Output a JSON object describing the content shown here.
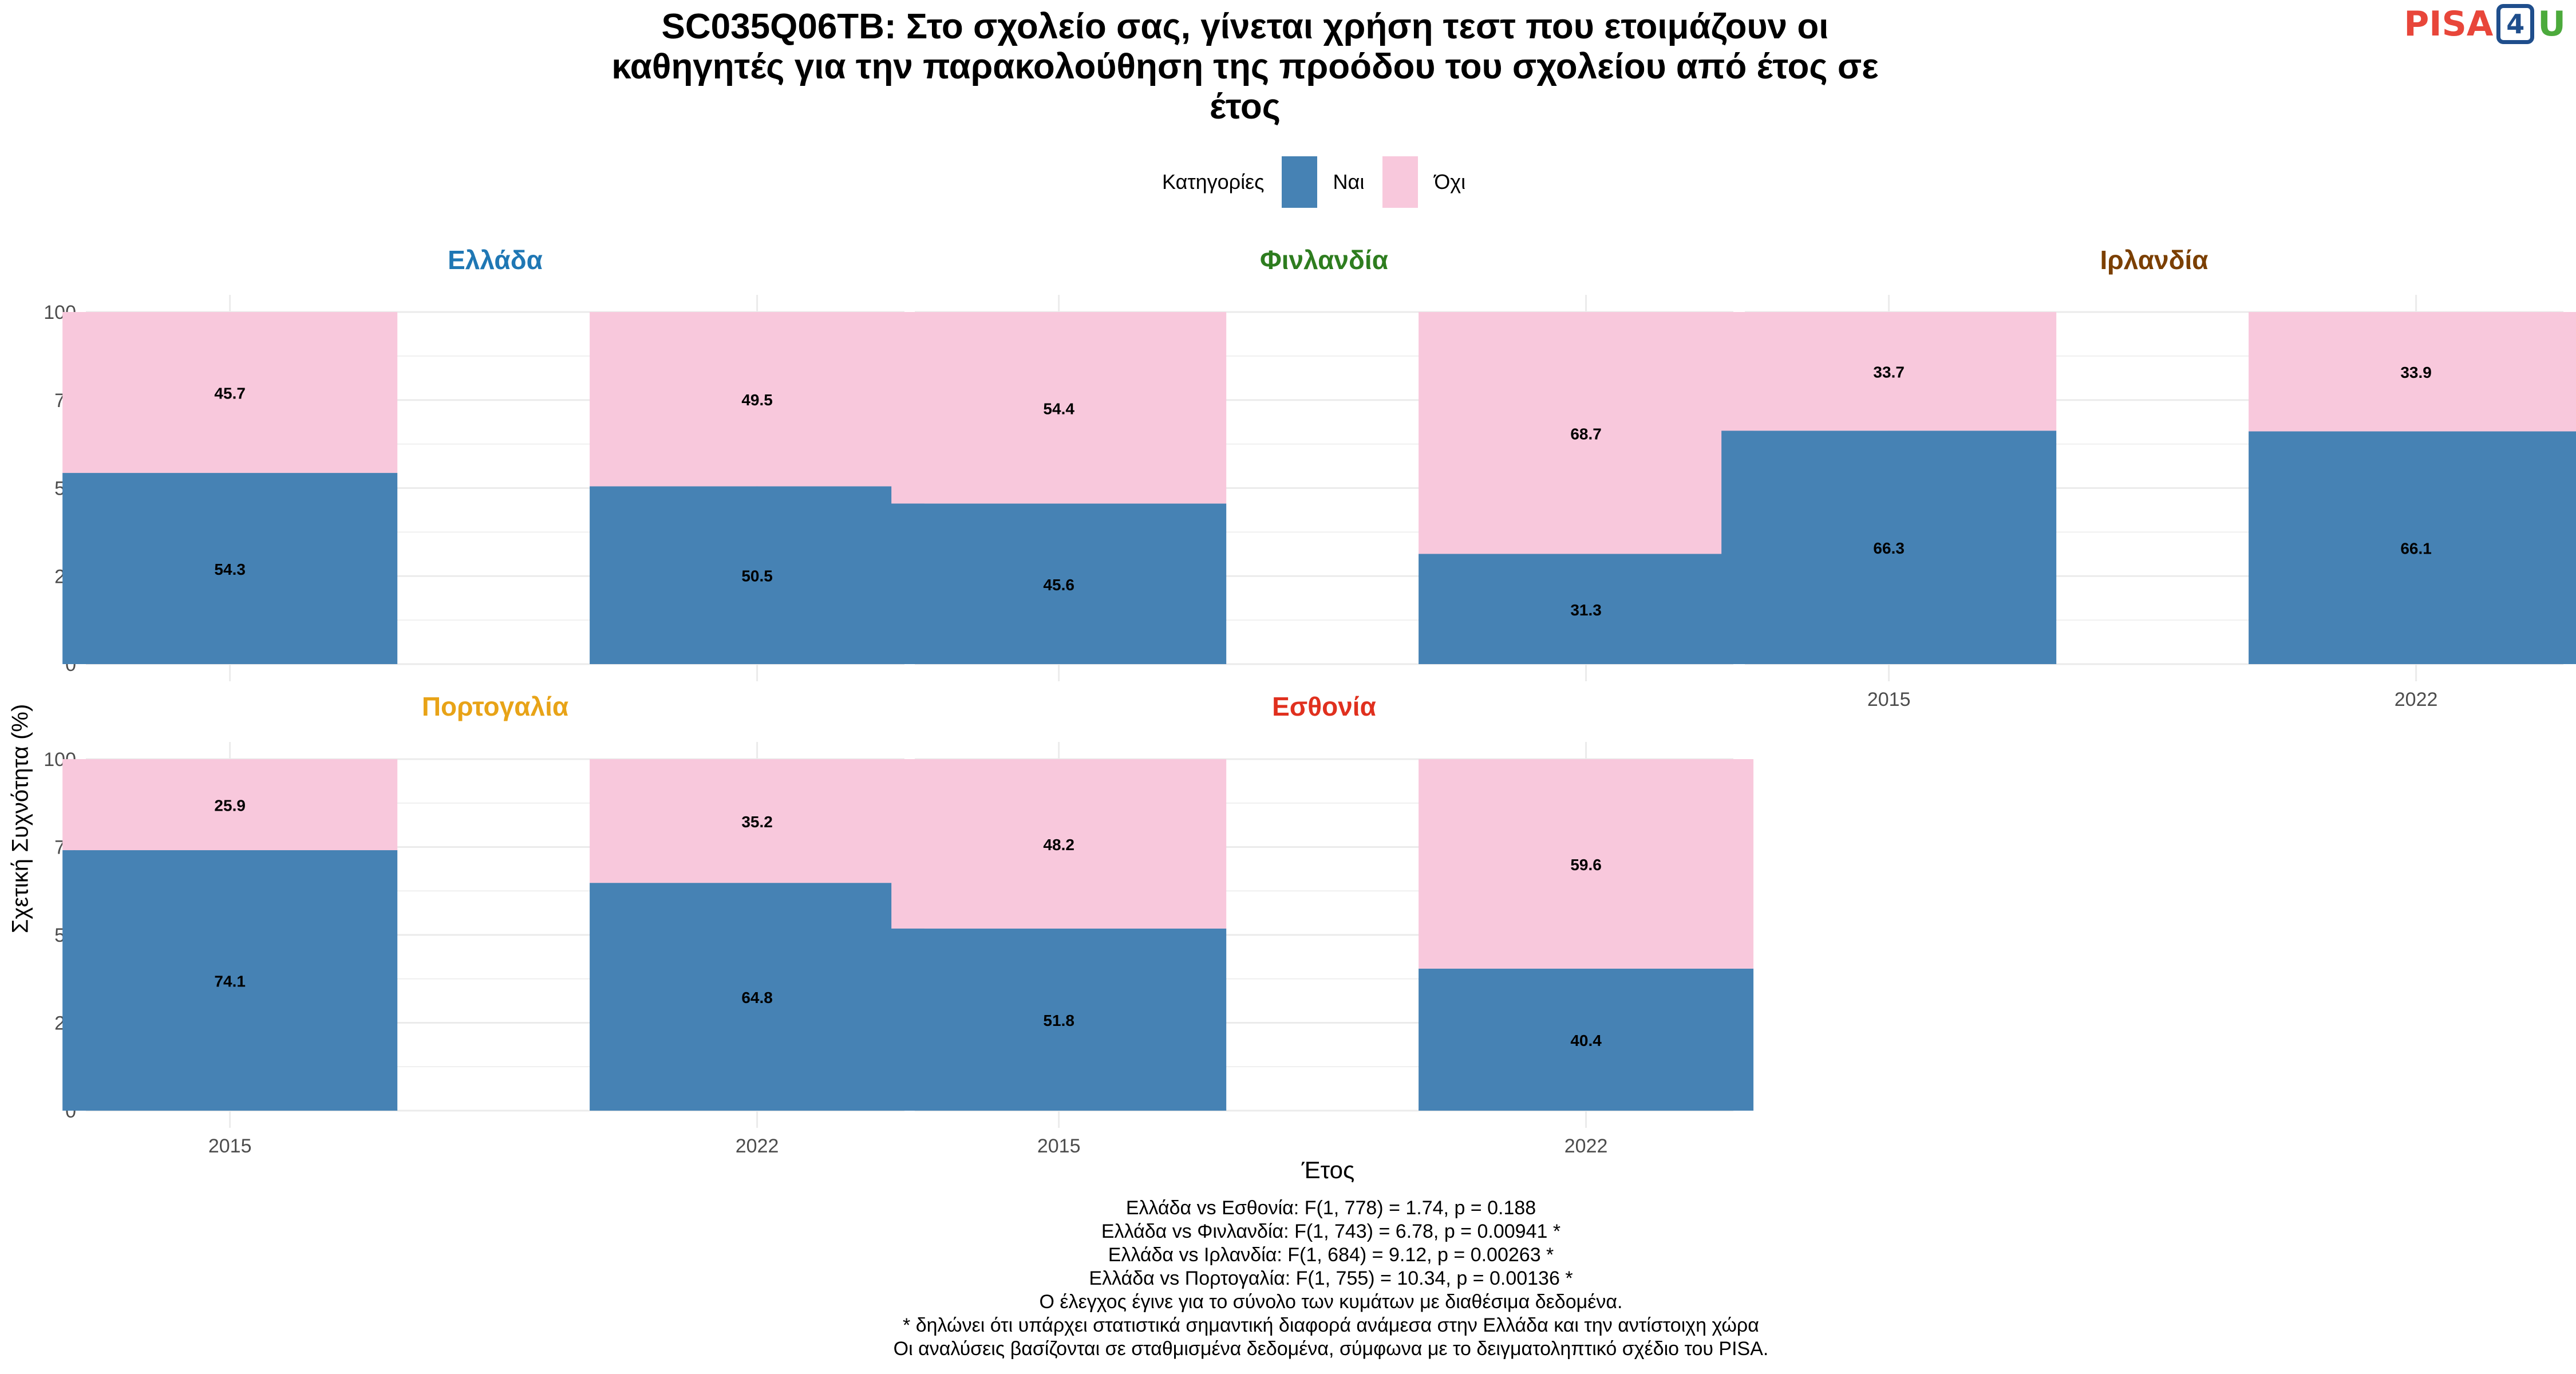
{
  "title_lines": [
    "SC035Q06TB: Στο σχολείο σας, γίνεται χρήση τεστ που ετοιμάζουν οι",
    "καθηγητές για την παρακολούθηση της προόδου του σχολείου από έτος σε",
    "έτος"
  ],
  "logo": {
    "pisa": "PISA",
    "four": "4",
    "u": "U"
  },
  "legend": {
    "title": "Κατηγορίες",
    "yes": "Ναι",
    "no": "Όχι"
  },
  "colors": {
    "yes": "#4682b4",
    "no": "#f8c8dc",
    "grid": "#ebebeb",
    "greece": "#1f77b4",
    "finland": "#2e7d1f",
    "ireland": "#7b3f00",
    "portugal": "#e8a317",
    "estonia": "#e0301e"
  },
  "axis": {
    "ylabel": "Σχετική Συχνότητα (%)",
    "xlabel": "Έτος",
    "yticks": [
      "0",
      "25",
      "50",
      "75",
      "100"
    ]
  },
  "chart_data": {
    "type": "bar",
    "stacked": true,
    "ylim": [
      0,
      100
    ],
    "grid": true,
    "legend_position": "top",
    "categories": [
      "2015",
      "2022"
    ],
    "panels": [
      {
        "name": "Ελλάδα",
        "color_key": "greece",
        "yes": [
          54.3,
          50.5
        ],
        "no": [
          45.7,
          49.5
        ]
      },
      {
        "name": "Φινλανδία",
        "color_key": "finland",
        "yes": [
          45.6,
          31.3
        ],
        "no": [
          54.4,
          68.7
        ]
      },
      {
        "name": "Ιρλανδία",
        "color_key": "ireland",
        "yes": [
          66.3,
          66.1
        ],
        "no": [
          33.7,
          33.9
        ]
      },
      {
        "name": "Πορτογαλία",
        "color_key": "portugal",
        "yes": [
          74.1,
          64.8
        ],
        "no": [
          25.9,
          35.2
        ]
      },
      {
        "name": "Εσθονία",
        "color_key": "estonia",
        "yes": [
          51.8,
          40.4
        ],
        "no": [
          48.2,
          59.6
        ]
      }
    ]
  },
  "caption_lines": [
    "Ελλάδα vs Εσθονία: F(1, 778) = 1.74, p = 0.188",
    "Ελλάδα vs Φινλανδία: F(1, 743) = 6.78, p = 0.00941 *",
    "Ελλάδα vs Ιρλανδία: F(1, 684) = 9.12, p = 0.00263 *",
    "Ελλάδα vs Πορτογαλία: F(1, 755) = 10.34, p = 0.00136 *",
    "Ο έλεγχος έγινε για το σύνολο των κυμάτων με διαθέσιμα δεδομένα.",
    "* δηλώνει ότι υπάρχει στατιστικά σημαντική διαφορά ανάμεσα στην Ελλάδα και την αντίστοιχη χώρα",
    "Οι αναλύσεις βασίζονται σε σταθμισμένα δεδομένα, σύμφωνα με το δειγματοληπτικό σχέδιο του PISA."
  ]
}
